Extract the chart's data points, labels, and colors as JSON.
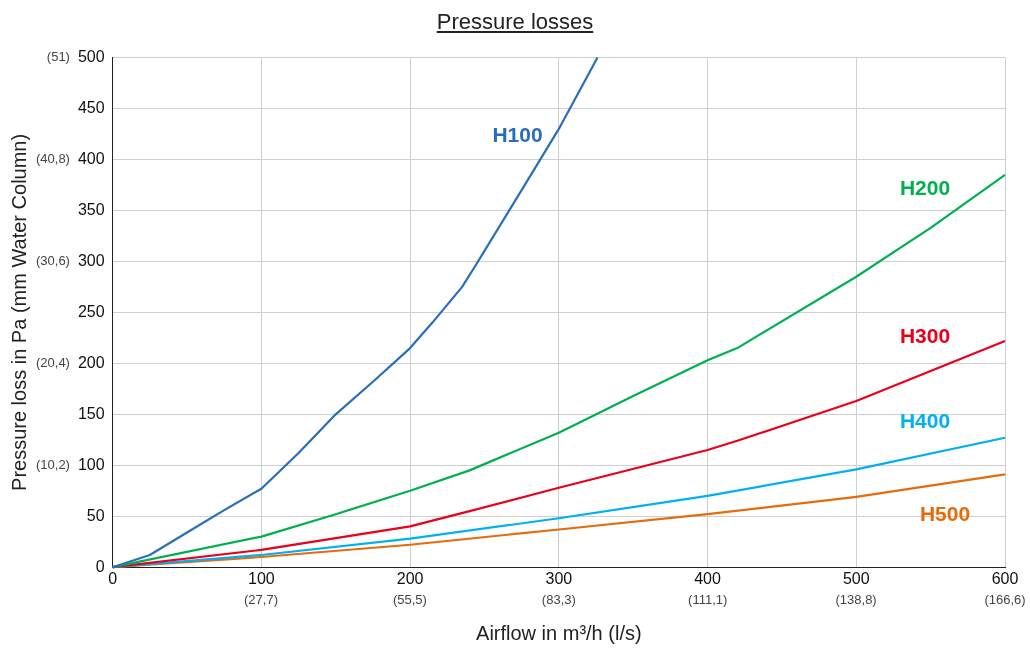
{
  "chart_data": {
    "type": "line",
    "title": "Pressure losses",
    "xlabel": "Airflow in m³/h (l/s)",
    "y2label": "Pressure loss in Pa (mm Water Column)",
    "xlim": [
      0,
      600
    ],
    "xticks": [
      0,
      100,
      200,
      300,
      400,
      500,
      600
    ],
    "x2lim": [
      0,
      166.6
    ],
    "x2ticks": [
      {
        "value": 27.7,
        "label": "(27,7)"
      },
      {
        "value": 55.5,
        "label": "(55,5)"
      },
      {
        "value": 83.3,
        "label": "(83,3)"
      },
      {
        "value": 111.1,
        "label": "(111,1)"
      },
      {
        "value": 138.8,
        "label": "(138,8)"
      },
      {
        "value": 166.6,
        "label": "(166,6)"
      }
    ],
    "ylim": [
      0,
      500
    ],
    "yticks": [
      0,
      50,
      100,
      150,
      200,
      250,
      300,
      350,
      400,
      450,
      500
    ],
    "y2lim": [
      0,
      51
    ],
    "y2ticks": [
      {
        "value": 10.2,
        "label": "(10,2)"
      },
      {
        "value": 20.4,
        "label": "(20,4)"
      },
      {
        "value": 30.6,
        "label": "(30,6)"
      },
      {
        "value": 40.8,
        "label": "(40,8)"
      },
      {
        "value": 51,
        "label": "(51)"
      }
    ],
    "grid": true,
    "legend": false,
    "marker": "none",
    "line_style": "solid",
    "series": [
      {
        "name": "H100",
        "color": "#2a6db8",
        "x": [
          0,
          25,
          50,
          75,
          100,
          125,
          150,
          175,
          200,
          215,
          235,
          244,
          275,
          300,
          326
        ],
        "values": [
          0,
          12,
          34,
          56,
          77,
          112,
          150,
          182,
          215,
          240,
          275,
          296,
          370,
          430,
          500
        ]
      },
      {
        "name": "H200",
        "color": "#00b050",
        "x": [
          0,
          100,
          150,
          200,
          240,
          300,
          350,
          400,
          420,
          500,
          550,
          600
        ],
        "values": [
          0,
          30,
          52,
          75,
          95,
          132,
          168,
          203,
          215,
          285,
          333,
          385
        ]
      },
      {
        "name": "H300",
        "color": "#e8001c",
        "x": [
          0,
          100,
          200,
          240,
          300,
          400,
          420,
          500,
          600
        ],
        "values": [
          0,
          17,
          40,
          55,
          78,
          115,
          124,
          163,
          222
        ]
      },
      {
        "name": "H400",
        "color": "#00b0f0",
        "x": [
          0,
          100,
          200,
          300,
          400,
          500,
          600
        ],
        "values": [
          0,
          12,
          28,
          48,
          70,
          96,
          127
        ]
      },
      {
        "name": "H500",
        "color": "#e46c0a",
        "x": [
          0,
          100,
          200,
          300,
          400,
          500,
          600
        ],
        "values": [
          0,
          10,
          22,
          37,
          52,
          69,
          91
        ]
      }
    ]
  }
}
